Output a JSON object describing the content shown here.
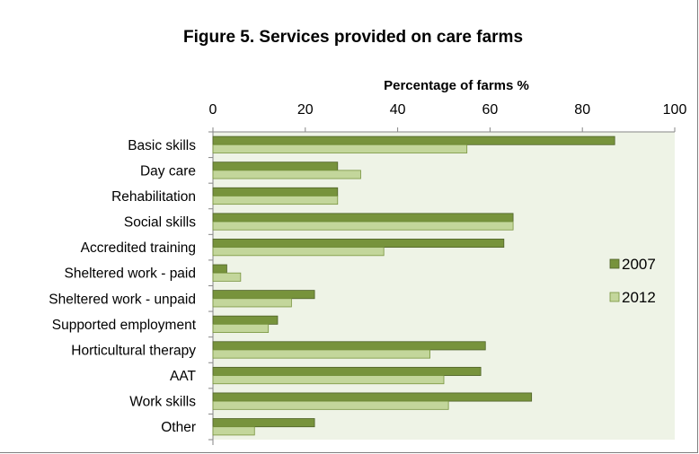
{
  "chart_data": {
    "type": "bar",
    "orientation": "horizontal",
    "title": "Figure 5. Services provided on care farms",
    "xlabel": "Percentage of farms %",
    "ylabel": "",
    "xlim": [
      0,
      100
    ],
    "xticks": [
      0,
      20,
      40,
      60,
      80,
      100
    ],
    "x_axis_position": "top",
    "grid": false,
    "legend_position": "right",
    "categories": [
      "Basic skills",
      "Day care",
      "Rehabilitation",
      "Social skills",
      "Accredited training",
      "Sheltered work - paid",
      "Sheltered work - unpaid",
      "Supported employment",
      "Horticultural therapy",
      "AAT",
      "Work skills",
      "Other"
    ],
    "series": [
      {
        "name": "2007",
        "color": "#77933c",
        "values": [
          87,
          27,
          27,
          65,
          63,
          3,
          22,
          14,
          59,
          58,
          69,
          22
        ]
      },
      {
        "name": "2012",
        "color": "#c3d69b",
        "values": [
          55,
          32,
          27,
          65,
          37,
          6,
          17,
          12,
          47,
          50,
          51,
          9
        ]
      }
    ],
    "plot_background": "#eef3e6"
  }
}
